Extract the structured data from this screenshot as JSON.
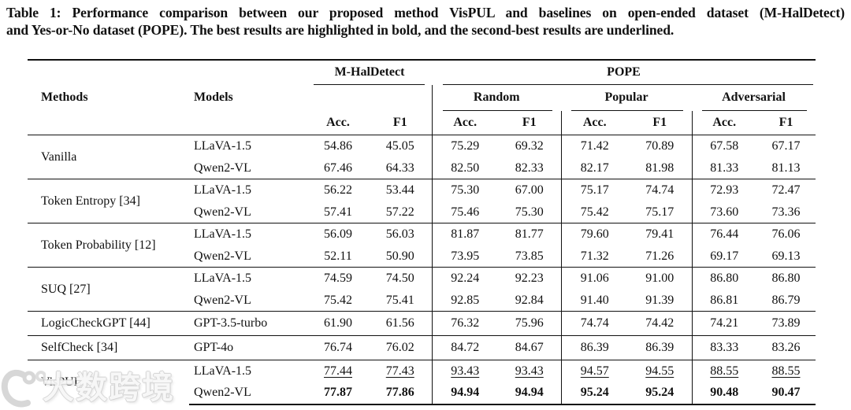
{
  "caption": {
    "line1": "Table 1: Performance comparison between our proposed method VisPUL and baselines on open-ended dataset (M-HalDetect)",
    "line2": "and Yes-or-No dataset (POPE). The best results are highlighted in bold, and the second-best results are underlined."
  },
  "watermark": {
    "brand": "大数跨境",
    "logo": "ring-and-circles-logo"
  },
  "theme": {
    "text_color": "#111111",
    "rule_color": "#111111",
    "background": "#ffffff",
    "watermark_color": "#d6d6d6"
  },
  "table": {
    "columns": {
      "methods": "Methods",
      "models": "Models",
      "acc": "Acc.",
      "f1": "F1"
    },
    "col_groups": {
      "mhaldetect": "M-HalDetect",
      "pope": "POPE",
      "random": "Random",
      "popular": "Popular",
      "adversarial": "Adversarial"
    },
    "groups": [
      {
        "method": "Vanilla",
        "rows": [
          {
            "model": "LLaVA-1.5",
            "style": "normal",
            "values": [
              "54.86",
              "45.05",
              "75.29",
              "69.32",
              "71.42",
              "70.89",
              "67.58",
              "67.17"
            ]
          },
          {
            "model": "Qwen2-VL",
            "style": "normal",
            "values": [
              "67.46",
              "64.33",
              "82.50",
              "82.33",
              "82.17",
              "81.98",
              "81.33",
              "81.13"
            ]
          }
        ]
      },
      {
        "method": "Token Entropy [34]",
        "rows": [
          {
            "model": "LLaVA-1.5",
            "style": "normal",
            "values": [
              "56.22",
              "53.44",
              "75.30",
              "67.00",
              "75.17",
              "74.74",
              "72.93",
              "72.47"
            ]
          },
          {
            "model": "Qwen2-VL",
            "style": "normal",
            "values": [
              "57.41",
              "57.22",
              "75.46",
              "75.30",
              "75.42",
              "75.17",
              "73.60",
              "73.36"
            ]
          }
        ]
      },
      {
        "method": "Token Probability [12]",
        "rows": [
          {
            "model": "LLaVA-1.5",
            "style": "normal",
            "values": [
              "56.09",
              "56.03",
              "81.87",
              "81.77",
              "79.60",
              "79.41",
              "76.44",
              "76.06"
            ]
          },
          {
            "model": "Qwen2-VL",
            "style": "normal",
            "values": [
              "52.11",
              "50.90",
              "73.95",
              "73.85",
              "71.32",
              "71.26",
              "69.17",
              "69.13"
            ]
          }
        ]
      },
      {
        "method": "SUQ [27]",
        "rows": [
          {
            "model": "LLaVA-1.5",
            "style": "normal",
            "values": [
              "74.59",
              "74.50",
              "92.24",
              "92.23",
              "91.06",
              "91.00",
              "86.80",
              "86.80"
            ]
          },
          {
            "model": "Qwen2-VL",
            "style": "normal",
            "values": [
              "75.42",
              "75.41",
              "92.85",
              "92.84",
              "91.40",
              "91.39",
              "86.81",
              "86.79"
            ]
          }
        ]
      },
      {
        "method": "LogicCheckGPT [44]",
        "rows": [
          {
            "model": "GPT-3.5-turbo",
            "style": "normal",
            "values": [
              "61.90",
              "61.56",
              "76.32",
              "75.96",
              "74.74",
              "74.42",
              "74.21",
              "73.89"
            ]
          }
        ]
      },
      {
        "method": "SelfCheck [34]",
        "rows": [
          {
            "model": "GPT-4o",
            "style": "normal",
            "values": [
              "76.74",
              "76.02",
              "84.72",
              "84.67",
              "86.39",
              "86.39",
              "83.33",
              "83.26"
            ]
          }
        ]
      },
      {
        "method": "VisPUL",
        "rows": [
          {
            "model": "LLaVA-1.5",
            "style": "underline",
            "values": [
              "77.44",
              "77.43",
              "93.43",
              "93.43",
              "94.57",
              "94.55",
              "88.55",
              "88.55"
            ]
          },
          {
            "model": "Qwen2-VL",
            "style": "bold",
            "values": [
              "77.87",
              "77.86",
              "94.94",
              "94.94",
              "95.24",
              "95.24",
              "90.48",
              "90.47"
            ]
          }
        ]
      }
    ]
  }
}
